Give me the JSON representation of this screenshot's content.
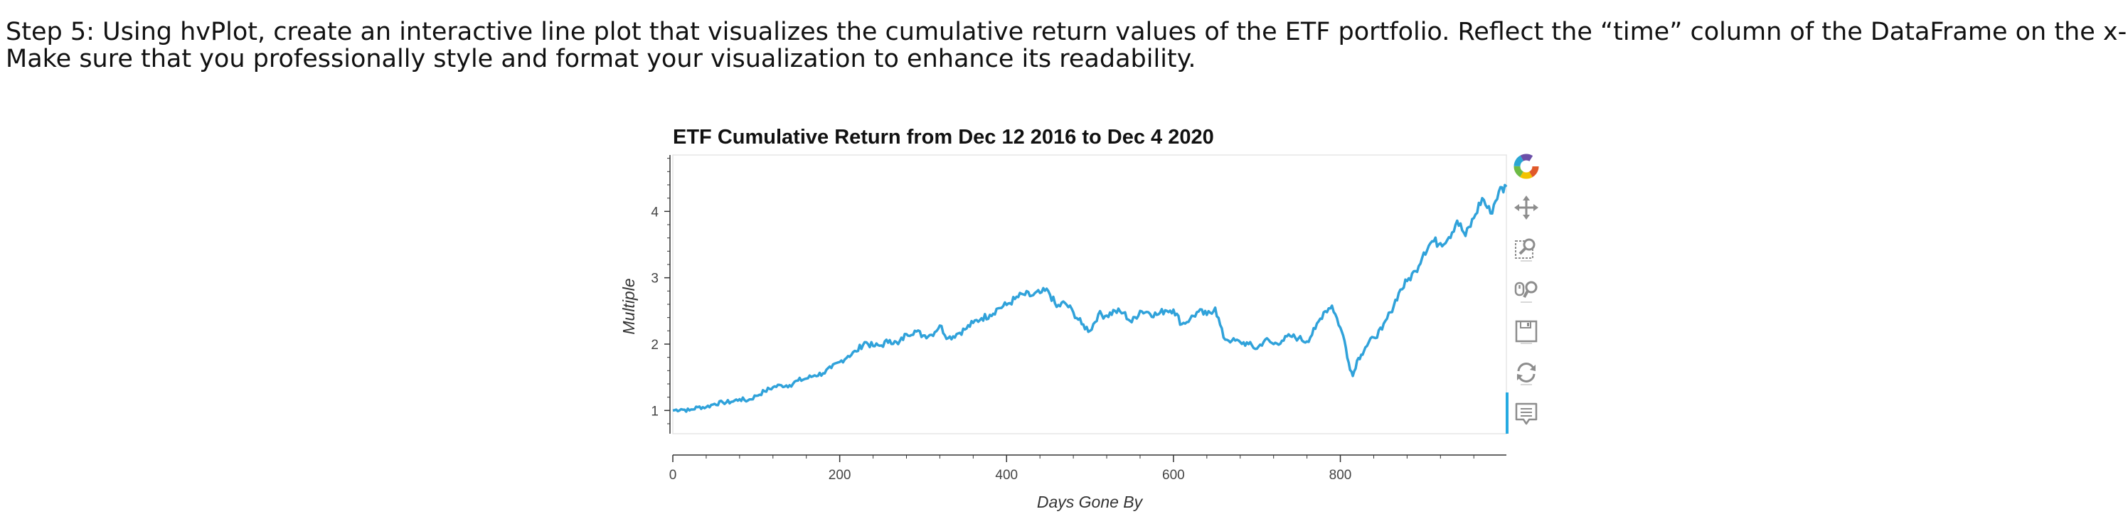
{
  "instructions": {
    "line1": "Step 5: Using hvPlot, create an interactive line plot that visualizes the cumulative return values of the ETF portfolio. Reflect the “time” column of the DataFrame on the x-axis.",
    "line2": "Make sure that you professionally style and format your visualization to enhance its readability."
  },
  "toolbar": {
    "tools": [
      {
        "name": "bokeh-logo-icon",
        "interactable": false
      },
      {
        "name": "pan-tool-icon",
        "interactable": true
      },
      {
        "name": "box-zoom-tool-icon",
        "interactable": true
      },
      {
        "name": "wheel-zoom-tool-icon",
        "interactable": true
      },
      {
        "name": "save-tool-icon",
        "interactable": true
      },
      {
        "name": "reset-tool-icon",
        "interactable": true
      },
      {
        "name": "hover-tool-icon",
        "interactable": true
      }
    ]
  },
  "chart_data": {
    "type": "line",
    "title": "ETF Cumulative Return from Dec 12 2016 to Dec 4 2020",
    "xlabel": "Days Gone By",
    "ylabel": "Multiple",
    "xlim": [
      0,
      999
    ],
    "ylim": [
      0.65,
      4.85
    ],
    "xticks": [
      0,
      200,
      400,
      600,
      800
    ],
    "yticks": [
      1,
      2,
      3,
      4
    ],
    "grid": false,
    "line_color": "#30a2da",
    "series": [
      {
        "x": [
          0,
          10,
          20,
          30,
          40,
          50,
          60,
          70,
          80,
          90,
          100,
          110,
          120,
          130,
          140,
          150,
          160,
          170,
          180,
          190,
          200,
          210,
          220,
          230,
          240,
          250,
          260,
          270,
          280,
          290,
          300,
          310,
          320,
          330,
          340,
          350,
          360,
          370,
          380,
          390,
          400,
          410,
          420,
          430,
          440,
          450,
          460,
          470,
          480,
          490,
          500,
          510,
          520,
          530,
          540,
          550,
          560,
          570,
          580,
          590,
          600,
          610,
          620,
          630,
          640,
          650,
          660,
          670,
          680,
          690,
          700,
          710,
          720,
          730,
          740,
          750,
          760,
          770,
          780,
          790,
          800,
          805,
          810,
          815,
          820,
          825,
          830,
          840,
          850,
          860,
          870,
          880,
          890,
          900,
          910,
          920,
          930,
          940,
          950,
          960,
          970,
          980,
          990,
          999
        ],
        "y": [
          1.0,
          1.02,
          1.0,
          1.05,
          1.05,
          1.1,
          1.12,
          1.13,
          1.17,
          1.15,
          1.22,
          1.29,
          1.35,
          1.38,
          1.38,
          1.45,
          1.48,
          1.53,
          1.56,
          1.64,
          1.73,
          1.82,
          1.89,
          2.03,
          1.97,
          1.98,
          2.06,
          2.0,
          2.15,
          2.2,
          2.13,
          2.14,
          2.28,
          2.09,
          2.15,
          2.22,
          2.32,
          2.39,
          2.44,
          2.54,
          2.59,
          2.68,
          2.75,
          2.73,
          2.77,
          2.8,
          2.56,
          2.62,
          2.48,
          2.3,
          2.2,
          2.45,
          2.43,
          2.5,
          2.47,
          2.33,
          2.5,
          2.48,
          2.44,
          2.51,
          2.52,
          2.3,
          2.38,
          2.49,
          2.44,
          2.55,
          2.1,
          2.05,
          2.03,
          2.0,
          1.93,
          2.07,
          2.0,
          2.05,
          2.12,
          2.09,
          2.04,
          2.23,
          2.48,
          2.58,
          2.25,
          2.05,
          1.72,
          1.52,
          1.75,
          1.84,
          1.95,
          2.1,
          2.22,
          2.48,
          2.77,
          2.95,
          3.1,
          3.38,
          3.55,
          3.52,
          3.61,
          3.86,
          3.63,
          3.9,
          4.2,
          3.97,
          4.3,
          4.37
        ]
      }
    ]
  }
}
